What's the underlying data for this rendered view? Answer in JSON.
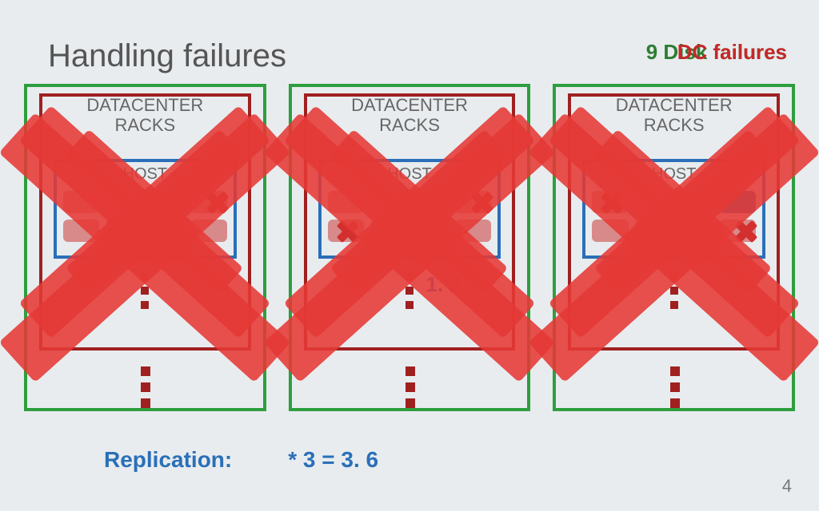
{
  "title": "Handling failures",
  "top_right": {
    "text_green": "9 Disk failures",
    "text_red_overlay": "DC failures"
  },
  "colors": {
    "background": "#e8ecef",
    "dc_border": "#2e9e3f",
    "rack_border": "#a02020",
    "host_border": "#2a6fb8",
    "x_fill": "#e53935",
    "disk_faded": "#d88a8a",
    "disk_blue": "#4a6fa5",
    "text_muted": "#666666",
    "accent_blue": "#2a6fb8",
    "accent_green": "#2e7d32"
  },
  "datacenters": [
    {
      "label_line1": "DATACENTER",
      "label_line2": "RACKS",
      "host_label": "HOST",
      "disks_row1": [
        "#d88a8a",
        "#d88a8a",
        "#d88a8a",
        "#d88a8a"
      ],
      "disks_row2": [
        "#d88a8a",
        "#d88a8a",
        "#d88a8a",
        "#d88a8a"
      ],
      "disk_x_positions": [
        [
          3,
          0
        ]
      ],
      "show_ratio": false,
      "x_layers": [
        "host",
        "rack",
        "dc"
      ]
    },
    {
      "label_line1": "DATACENTER",
      "label_line2": "RACKS",
      "host_label": "HOST",
      "disks_row1": [
        "#d88a8a",
        "#d88a8a",
        "#d88a8a",
        "#d88a8a"
      ],
      "disks_row2": [
        "#d88a8a",
        "#d88a8a",
        "#d88a8a",
        "#d88a8a"
      ],
      "disk_x_positions": [
        [
          0,
          1
        ],
        [
          3,
          0
        ]
      ],
      "show_ratio": true,
      "ratio_text": "1. 2",
      "x_layers": [
        "host",
        "rack",
        "dc"
      ]
    },
    {
      "label_line1": "DATACENTER",
      "label_line2": "RACKS",
      "host_label": "HOST",
      "disks_row1": [
        "#d88a8a",
        "#d88a8a",
        "#d88a8a",
        "#4a6fa5"
      ],
      "disks_row2": [
        "#d88a8a",
        "#d88a8a",
        "#d88a8a",
        "#d88a8a"
      ],
      "disk_x_positions": [
        [
          0,
          0
        ],
        [
          3,
          1
        ]
      ],
      "show_ratio": false,
      "x_layers": [
        "host",
        "rack",
        "dc"
      ]
    }
  ],
  "bottom": {
    "label": "Replication:",
    "expr": "*  3  =  3. 6"
  },
  "page_number": "4",
  "layout": {
    "slide_w": 1024,
    "slide_h": 640,
    "dc_count": 3
  }
}
